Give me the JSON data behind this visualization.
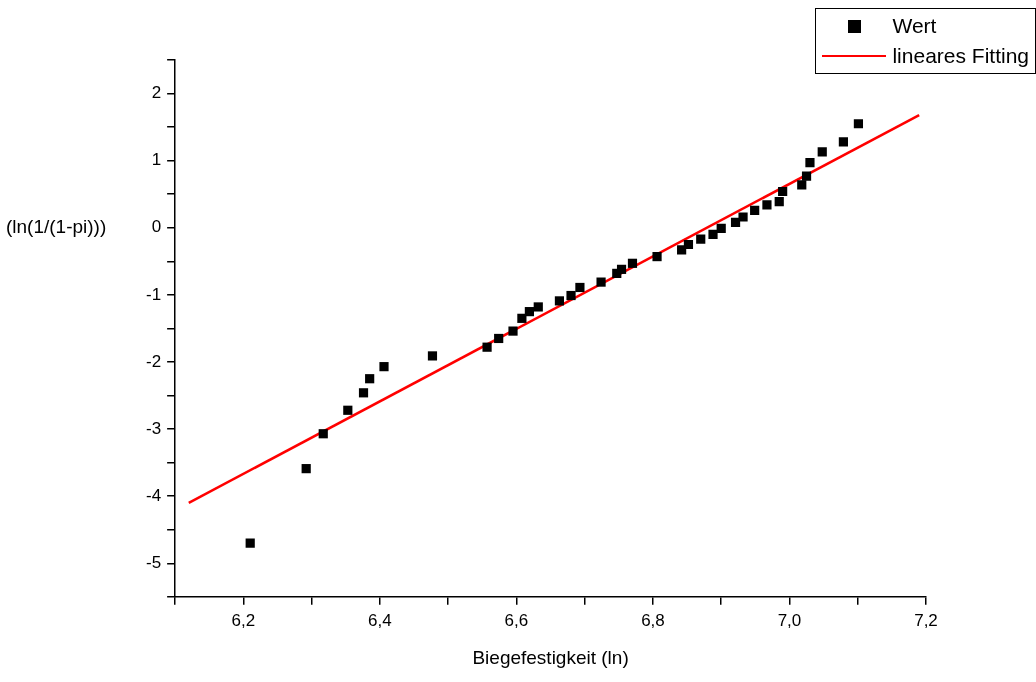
{
  "chart_data": {
    "type": "scatter",
    "xlabel": "Biegefestigkeit (ln)",
    "ylabel": "(ln(1/(1-pi)))",
    "marker": "square",
    "legend": "top right",
    "xlim": [
      6.1,
      7.2
    ],
    "ylim": [
      -5.5,
      2.5
    ],
    "xticks": [
      {
        "value": 6.1,
        "label": null
      },
      {
        "value": 6.2,
        "label": "6,2"
      },
      {
        "value": 6.3,
        "label": null
      },
      {
        "value": 6.4,
        "label": "6,4"
      },
      {
        "value": 6.5,
        "label": null
      },
      {
        "value": 6.6,
        "label": "6,6"
      },
      {
        "value": 6.7,
        "label": null
      },
      {
        "value": 6.8,
        "label": "6,8"
      },
      {
        "value": 6.9,
        "label": null
      },
      {
        "value": 7.0,
        "label": "7,0"
      },
      {
        "value": 7.1,
        "label": null
      },
      {
        "value": 7.2,
        "label": "7,2"
      }
    ],
    "yticks": [
      {
        "value": -5.5,
        "label": null
      },
      -5,
      {
        "value": -4.5,
        "label": null
      },
      -4,
      {
        "value": -3.5,
        "label": null
      },
      -3,
      {
        "value": -2.5,
        "label": null
      },
      -2,
      {
        "value": -1.5,
        "label": null
      },
      -1,
      {
        "value": -0.5,
        "label": null
      },
      0,
      {
        "value": 0.5,
        "label": null
      },
      1,
      {
        "value": 1.5,
        "label": null
      },
      2,
      {
        "value": 2.5,
        "label": null
      }
    ],
    "series": [
      {
        "name": "Wert",
        "color": "#000000",
        "x": [
          6.21,
          6.292,
          6.317,
          6.353,
          6.376,
          6.385,
          6.406,
          6.477,
          6.557,
          6.574,
          6.595,
          6.608,
          6.619,
          6.632,
          6.663,
          6.68,
          6.693,
          6.724,
          6.747,
          6.754,
          6.77,
          6.806,
          6.842,
          6.852,
          6.87,
          6.888,
          6.9,
          6.921,
          6.932,
          6.949,
          6.967,
          6.985,
          6.99,
          7.018,
          7.025,
          7.03,
          7.048,
          7.079,
          7.101
        ],
        "values": [
          -4.7,
          -3.59,
          -3.07,
          -2.72,
          -2.46,
          -2.25,
          -2.07,
          -1.91,
          -1.78,
          -1.65,
          -1.54,
          -1.35,
          -1.25,
          -1.18,
          -1.09,
          -1.01,
          -0.89,
          -0.81,
          -0.68,
          -0.62,
          -0.53,
          -0.43,
          -0.33,
          -0.25,
          -0.17,
          -0.1,
          -0.01,
          0.08,
          0.16,
          0.26,
          0.34,
          0.39,
          0.54,
          0.64,
          0.77,
          0.97,
          1.13,
          1.28,
          1.55
        ]
      },
      {
        "name": "lineares Fitting",
        "type": "line",
        "color": "#ff0000",
        "marker": "none",
        "x": [
          6.12,
          7.19
        ],
        "values": [
          -4.1,
          1.68
        ]
      }
    ]
  }
}
